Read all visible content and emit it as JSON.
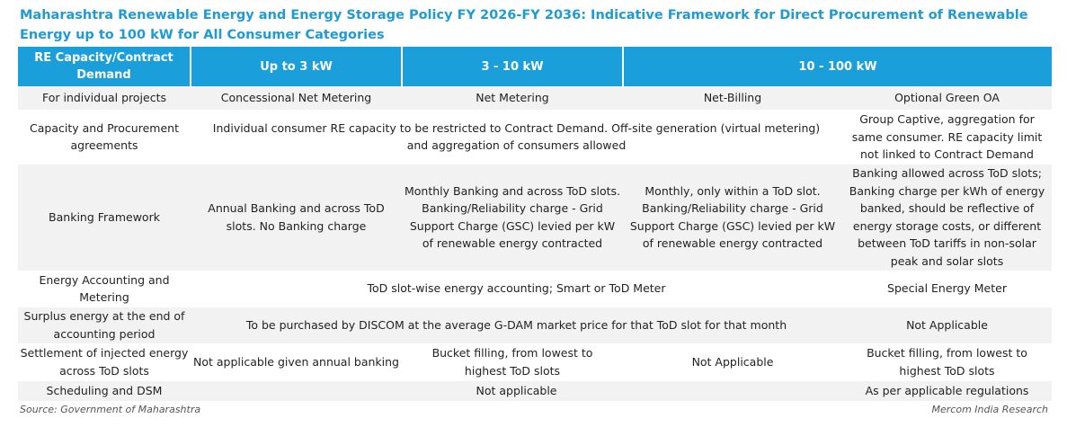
{
  "title": "Maharashtra Renewable Energy and Energy Storage Policy FY 2026-FY 2036: Indicative Framework for Direct Procurement of Renewable Energy up to 100 kW for All Consumer Categories",
  "headers": [
    "RE Capacity/Contract Demand",
    "Up to 3 kW",
    "3 - 10 kW",
    "10 - 100 kW"
  ],
  "rows": {
    "individual_projects": {
      "label": "For individual projects",
      "up_to_3": "Concessional Net Metering",
      "three_to_10": "Net Metering",
      "ten_to_100_a": "Net-Billing",
      "ten_to_100_b": "Optional Green OA"
    },
    "capacity": {
      "label": "Capacity and Procurement agreements",
      "merged": "Individual consumer RE capacity to be restricted to Contract Demand. Off-site generation (virtual metering) and aggregation of consumers allowed",
      "last": "Group Captive, aggregation for same consumer. RE capacity limit not linked to Contract Demand"
    },
    "banking": {
      "label": "Banking Framework",
      "up_to_3": "Annual Banking and across ToD slots. No Banking charge",
      "three_to_10": "Monthly Banking and across ToD slots. Banking/Reliability charge - Grid Support Charge (GSC) levied per kW of renewable energy contracted",
      "ten_to_100_a": "Monthly, only within a ToD slot. Banking/Reliability charge - Grid Support Charge (GSC) levied per kW of renewable energy contracted",
      "ten_to_100_b": "Banking allowed across ToD slots; Banking charge per kWh of energy banked, should be reflective of energy storage costs, or different between ToD tariffs in non-solar peak and solar slots"
    },
    "accounting": {
      "label": "Energy Accounting and Metering",
      "merged": "ToD slot-wise energy accounting; Smart or ToD Meter",
      "last": "Special Energy Meter"
    },
    "surplus": {
      "label": "Surplus energy at the end of accounting period",
      "merged": "To be purchased by DISCOM at the average G-DAM market price for that ToD slot for that month",
      "last": "Not Applicable"
    },
    "settlement": {
      "label": "Settlement of injected energy across ToD slots",
      "up_to_3": "Not applicable given annual banking",
      "three_to_10": "Bucket filling, from lowest to highest ToD slots",
      "ten_to_100_a": "Not Applicable",
      "ten_to_100_b": "Bucket filling, from lowest to highest ToD slots"
    },
    "scheduling": {
      "label": "Scheduling and DSM",
      "merged": "Not applicable",
      "last": "As per applicable regulations"
    }
  },
  "source": "Source: Government of Maharashtra",
  "credit": "Mercom India Research",
  "colors": {
    "accent": "#1A9FDB",
    "title": "#1E9BD7",
    "stripe": "#F2F2F2"
  }
}
